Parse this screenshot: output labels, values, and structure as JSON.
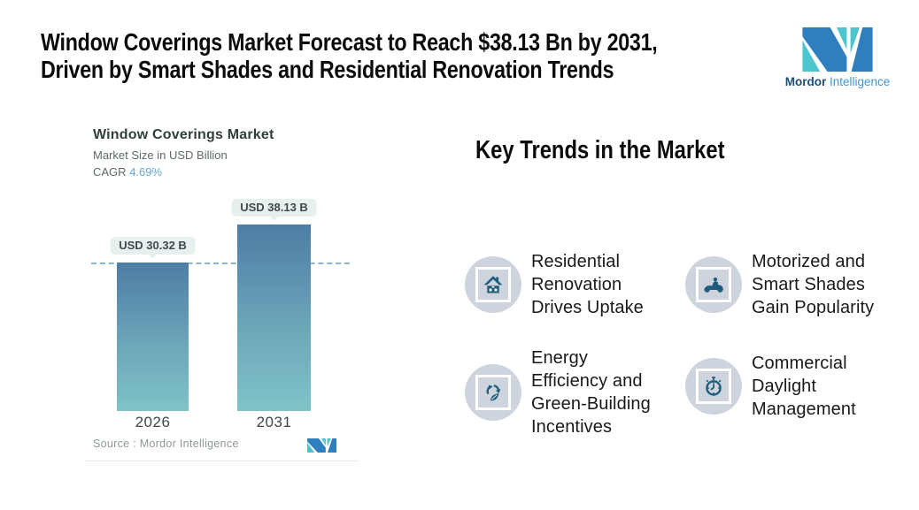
{
  "header": {
    "title": "Window Coverings Market Forecast to Reach $38.13 Bn by 2031,\nDriven by Smart Shades and Residential Renovation Trends"
  },
  "logo": {
    "brand_bold": "Mordor",
    "brand_light": "Intelligence"
  },
  "chart": {
    "title": "Window Coverings Market",
    "subtitle": "Market Size in USD Billion",
    "cagr_label": "CAGR",
    "cagr_value": "4.69%",
    "bars": [
      {
        "year": "2026",
        "label": "USD 30.32 B"
      },
      {
        "year": "2031",
        "label": "USD 38.13 B"
      }
    ],
    "source": "Source :  Mordor Intelligence"
  },
  "chart_data": {
    "type": "bar",
    "title": "Window Coverings Market",
    "ylabel": "Market Size in USD Billion",
    "categories": [
      "2026",
      "2031"
    ],
    "values": [
      30.32,
      38.13
    ],
    "data_labels": [
      "USD 30.32 B",
      "USD 38.13 B"
    ],
    "cagr": "4.69%",
    "reference_line": 30.32,
    "ylim": [
      0,
      40
    ],
    "grid": false,
    "legend": "none"
  },
  "trends": {
    "heading": "Key Trends in the Market",
    "items": [
      {
        "icon": "house-icon",
        "text": "Residential\nRenovation\nDrives Uptake"
      },
      {
        "icon": "motorcycle-icon",
        "text": "Motorized and\nSmart Shades\nGain Popularity"
      },
      {
        "icon": "recycle-leaf-icon",
        "text": "Energy\nEfficiency and\nGreen-Building\nIncentives"
      },
      {
        "icon": "stopwatch-icon",
        "text": "Commercial\nDaylight\nManagement"
      }
    ]
  },
  "colors": {
    "bar_top": "#4e7da4",
    "bar_bottom": "#7fc3c7",
    "dashed_line": "#8ab5d8",
    "tooltip_bg": "#e8efef",
    "cagr_value": "#5fa8da",
    "badge_circle": "#cdd4dd",
    "badge_icon": "#1d5d7c",
    "logo_blue": "#2e7fc0",
    "logo_teal": "#4cc5cf",
    "brand_dark_blue": "#1c4e7a",
    "brand_light_blue": "#4694ca"
  }
}
